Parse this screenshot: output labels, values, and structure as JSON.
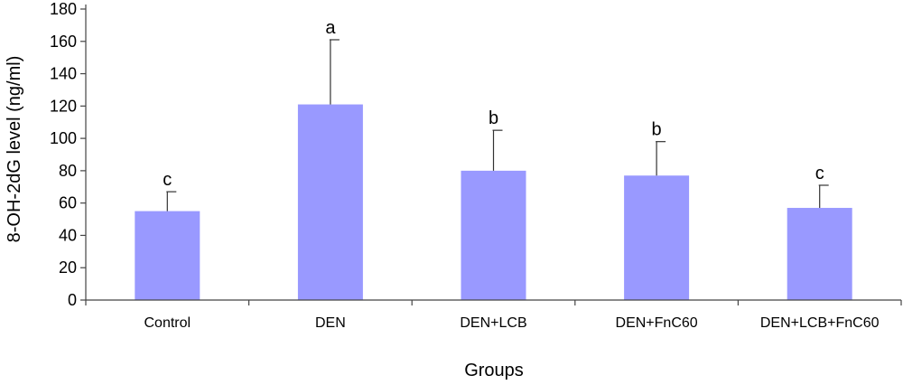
{
  "chart_data": {
    "type": "bar",
    "title": "",
    "xlabel": "Groups",
    "ylabel": "8-OH-2dG level (ng/ml)",
    "ylim": [
      0,
      180
    ],
    "yticks": [
      0,
      20,
      40,
      60,
      80,
      100,
      120,
      140,
      160,
      180
    ],
    "grid": false,
    "categories": [
      "Control",
      "DEN",
      "DEN+LCB",
      "DEN+FnC60",
      "DEN+LCB+FnC60"
    ],
    "series": [
      {
        "values": [
          55,
          121,
          80,
          77,
          57
        ],
        "errors": [
          12,
          40,
          25,
          21,
          14
        ],
        "significance": [
          "c",
          "a",
          "b",
          "b",
          "c"
        ],
        "color": "#9999ff"
      }
    ]
  }
}
